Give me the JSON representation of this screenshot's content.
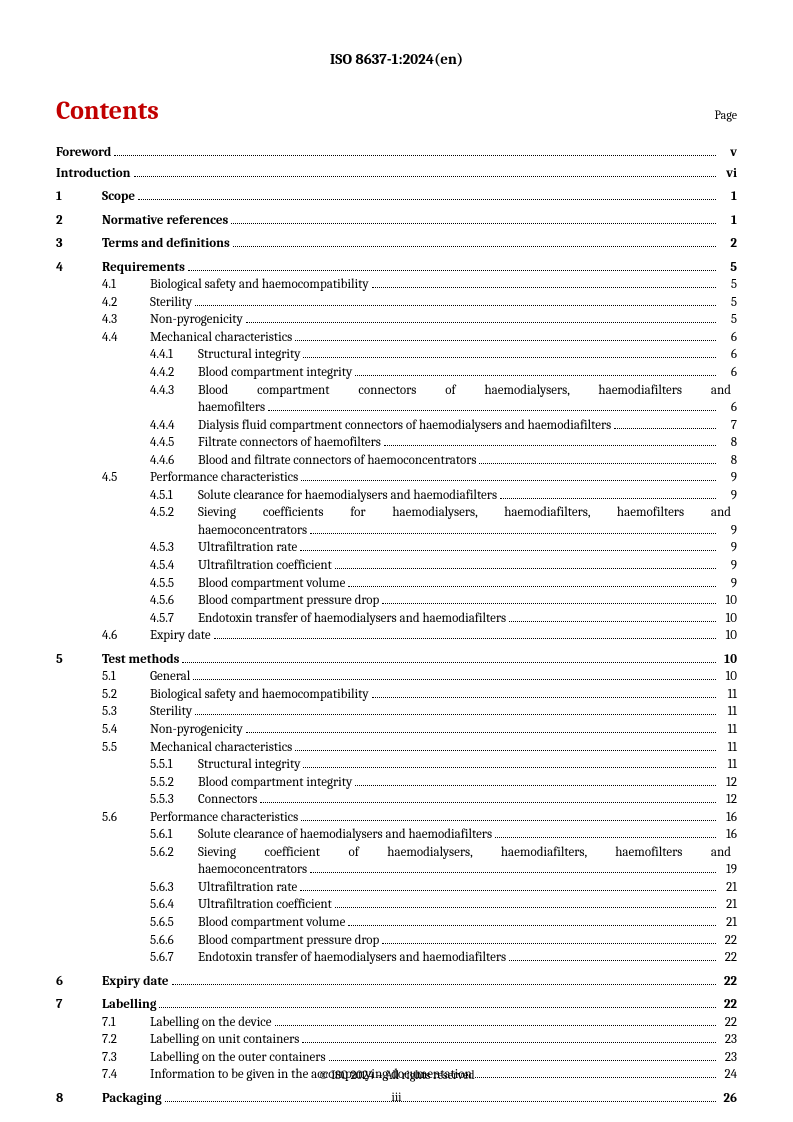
{
  "header": {
    "doc_id": "ISO 8637-1:2024(en)"
  },
  "contents": {
    "title": "Contents",
    "page_label": "Page"
  },
  "footer": {
    "copyright": "© ISO 2024 – All rights reserved",
    "page_number": "iii"
  },
  "toc": [
    {
      "level": 0,
      "num": "",
      "text": "Foreword",
      "page": "v"
    },
    {
      "level": 0,
      "num": "",
      "text": "Introduction",
      "page": "vi"
    },
    {
      "level": 1,
      "num": "1",
      "text": "Scope",
      "page": "1"
    },
    {
      "level": 1,
      "num": "2",
      "text": "Normative references",
      "page": "1"
    },
    {
      "level": 1,
      "num": "3",
      "text": "Terms and definitions",
      "page": "2"
    },
    {
      "level": 1,
      "num": "4",
      "text": "Requirements",
      "page": "5"
    },
    {
      "level": 2,
      "num": "4.1",
      "text": "Biological safety and haemocompatibility",
      "page": "5"
    },
    {
      "level": 2,
      "num": "4.2",
      "text": "Sterility",
      "page": "5"
    },
    {
      "level": 2,
      "num": "4.3",
      "text": "Non-pyrogenicity",
      "page": "5"
    },
    {
      "level": 2,
      "num": "4.4",
      "text": "Mechanical characteristics",
      "page": "6"
    },
    {
      "level": 3,
      "num": "4.4.1",
      "text": "Structural integrity",
      "page": "6"
    },
    {
      "level": 3,
      "num": "4.4.2",
      "text": "Blood compartment integrity",
      "page": "6"
    },
    {
      "level": 3,
      "num": "4.4.3",
      "text": "Blood compartment connectors of haemodialysers, haemodiafilters and",
      "cont": "haemofilters",
      "page": "6",
      "wrap": true
    },
    {
      "level": 3,
      "num": "4.4.4",
      "text": "Dialysis fluid compartment connectors of haemodialysers and haemodiafilters",
      "page": "7"
    },
    {
      "level": 3,
      "num": "4.4.5",
      "text": "Filtrate connectors of haemofilters",
      "page": "8"
    },
    {
      "level": 3,
      "num": "4.4.6",
      "text": "Blood and filtrate connectors of haemoconcentrators",
      "page": "8"
    },
    {
      "level": 2,
      "num": "4.5",
      "text": "Performance characteristics",
      "page": "9"
    },
    {
      "level": 3,
      "num": "4.5.1",
      "text": "Solute clearance for haemodialysers and haemodiafilters",
      "page": "9"
    },
    {
      "level": 3,
      "num": "4.5.2",
      "text": "Sieving coefficients for haemodialysers, haemodiafilters, haemofilters and",
      "cont": "haemoconcentrators",
      "page": "9",
      "wrap": true
    },
    {
      "level": 3,
      "num": "4.5.3",
      "text": "Ultrafiltration rate",
      "page": "9"
    },
    {
      "level": 3,
      "num": "4.5.4",
      "text": "Ultrafiltration coefficient",
      "page": "9"
    },
    {
      "level": 3,
      "num": "4.5.5",
      "text": "Blood compartment volume",
      "page": "9"
    },
    {
      "level": 3,
      "num": "4.5.6",
      "text": "Blood compartment pressure drop",
      "page": "10"
    },
    {
      "level": 3,
      "num": "4.5.7",
      "text": "Endotoxin transfer of haemodialysers and haemodiafilters",
      "page": "10"
    },
    {
      "level": 2,
      "num": "4.6",
      "text": "Expiry date",
      "page": "10"
    },
    {
      "level": 1,
      "num": "5",
      "text": "Test methods",
      "page": "10"
    },
    {
      "level": 2,
      "num": "5.1",
      "text": "General",
      "page": "10"
    },
    {
      "level": 2,
      "num": "5.2",
      "text": "Biological safety and haemocompatibility",
      "page": "11"
    },
    {
      "level": 2,
      "num": "5.3",
      "text": "Sterility",
      "page": "11"
    },
    {
      "level": 2,
      "num": "5.4",
      "text": "Non-pyrogenicity",
      "page": "11"
    },
    {
      "level": 2,
      "num": "5.5",
      "text": "Mechanical characteristics",
      "page": "11"
    },
    {
      "level": 3,
      "num": "5.5.1",
      "text": "Structural integrity",
      "page": "11"
    },
    {
      "level": 3,
      "num": "5.5.2",
      "text": "Blood compartment integrity",
      "page": "12"
    },
    {
      "level": 3,
      "num": "5.5.3",
      "text": "Connectors",
      "page": "12"
    },
    {
      "level": 2,
      "num": "5.6",
      "text": "Performance characteristics",
      "page": "16"
    },
    {
      "level": 3,
      "num": "5.6.1",
      "text": "Solute clearance of haemodialysers and haemodiafilters",
      "page": "16"
    },
    {
      "level": 3,
      "num": "5.6.2",
      "text": "Sieving coefficient of haemodialysers, haemodiafilters, haemofilters and",
      "cont": "haemoconcentrators",
      "page": "19",
      "wrap": true
    },
    {
      "level": 3,
      "num": "5.6.3",
      "text": "Ultrafiltration rate",
      "page": "21"
    },
    {
      "level": 3,
      "num": "5.6.4",
      "text": "Ultrafiltration coefficient",
      "page": "21"
    },
    {
      "level": 3,
      "num": "5.6.5",
      "text": "Blood compartment volume",
      "page": "21"
    },
    {
      "level": 3,
      "num": "5.6.6",
      "text": "Blood compartment pressure drop",
      "page": "22"
    },
    {
      "level": 3,
      "num": "5.6.7",
      "text": "Endotoxin transfer of haemodialysers and haemodiafilters",
      "page": "22"
    },
    {
      "level": 1,
      "num": "6",
      "text": "Expiry date",
      "page": "22"
    },
    {
      "level": 1,
      "num": "7",
      "text": "Labelling",
      "page": "22"
    },
    {
      "level": 2,
      "num": "7.1",
      "text": "Labelling on the device",
      "page": "22"
    },
    {
      "level": 2,
      "num": "7.2",
      "text": "Labelling on unit containers",
      "page": "23"
    },
    {
      "level": 2,
      "num": "7.3",
      "text": "Labelling on the outer containers",
      "page": "23"
    },
    {
      "level": 2,
      "num": "7.4",
      "text": "Information to be given in the accompanying documentation",
      "page": "24"
    },
    {
      "level": 1,
      "num": "8",
      "text": "Packaging",
      "page": "26"
    }
  ]
}
